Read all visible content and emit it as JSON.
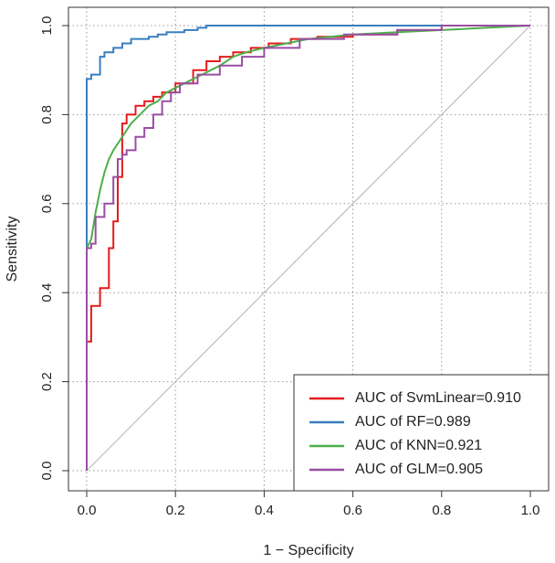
{
  "chart_data": {
    "type": "line",
    "title": "",
    "xlabel": "1 − Specificity",
    "ylabel": "Sensitivity",
    "xlim": [
      0,
      1
    ],
    "ylim": [
      0,
      1
    ],
    "xticks": [
      "0.0",
      "0.2",
      "0.4",
      "0.6",
      "0.8",
      "1.0"
    ],
    "yticks": [
      "0.0",
      "0.2",
      "0.4",
      "0.6",
      "0.8",
      "1.0"
    ],
    "grid": true,
    "legend_position": "bottom-right",
    "reference_line": {
      "x": [
        0,
        1
      ],
      "y": [
        0,
        1
      ],
      "color": "#bdbdbd"
    },
    "series": [
      {
        "name": "AUC of SvmLinear=0.910",
        "color": "#e41a1c",
        "step": true,
        "x": [
          0,
          0,
          0.01,
          0.01,
          0.03,
          0.03,
          0.05,
          0.05,
          0.06,
          0.06,
          0.07,
          0.07,
          0.08,
          0.08,
          0.09,
          0.09,
          0.11,
          0.11,
          0.13,
          0.13,
          0.15,
          0.15,
          0.17,
          0.17,
          0.2,
          0.2,
          0.24,
          0.24,
          0.27,
          0.27,
          0.3,
          0.3,
          0.33,
          0.33,
          0.37,
          0.37,
          0.41,
          0.41,
          0.46,
          0.46,
          0.52,
          0.52,
          0.6,
          0.6,
          0.7,
          0.7,
          0.8,
          0.8,
          1.0
        ],
        "y": [
          0,
          0.29,
          0.29,
          0.37,
          0.37,
          0.41,
          0.41,
          0.5,
          0.5,
          0.56,
          0.56,
          0.66,
          0.66,
          0.78,
          0.78,
          0.8,
          0.8,
          0.82,
          0.82,
          0.83,
          0.83,
          0.84,
          0.84,
          0.85,
          0.85,
          0.87,
          0.87,
          0.9,
          0.9,
          0.92,
          0.92,
          0.93,
          0.93,
          0.94,
          0.94,
          0.95,
          0.95,
          0.96,
          0.96,
          0.97,
          0.97,
          0.975,
          0.975,
          0.98,
          0.98,
          0.99,
          0.99,
          1.0,
          1.0
        ]
      },
      {
        "name": "AUC of RF=0.989",
        "color": "#3a7ebf",
        "step": true,
        "x": [
          0,
          0,
          0.01,
          0.01,
          0.03,
          0.03,
          0.04,
          0.04,
          0.06,
          0.06,
          0.08,
          0.08,
          0.1,
          0.1,
          0.14,
          0.14,
          0.16,
          0.16,
          0.18,
          0.18,
          0.22,
          0.22,
          0.25,
          0.25,
          0.27,
          0.27,
          1.0
        ],
        "y": [
          0,
          0.88,
          0.88,
          0.89,
          0.89,
          0.93,
          0.93,
          0.94,
          0.94,
          0.95,
          0.95,
          0.96,
          0.96,
          0.97,
          0.97,
          0.975,
          0.975,
          0.98,
          0.98,
          0.985,
          0.985,
          0.99,
          0.99,
          0.995,
          0.995,
          1.0,
          1.0
        ]
      },
      {
        "name": "AUC of KNN=0.921",
        "color": "#4daf4a",
        "step": false,
        "x": [
          0,
          0.01,
          0.02,
          0.03,
          0.04,
          0.05,
          0.06,
          0.08,
          0.1,
          0.12,
          0.14,
          0.16,
          0.18,
          0.2,
          0.22,
          0.24,
          0.26,
          0.28,
          0.3,
          0.33,
          0.36,
          0.4,
          0.45,
          0.5,
          0.55,
          0.6,
          0.7,
          0.8,
          0.9,
          1.0
        ],
        "y": [
          0.5,
          0.52,
          0.58,
          0.63,
          0.67,
          0.7,
          0.72,
          0.75,
          0.78,
          0.8,
          0.82,
          0.83,
          0.85,
          0.86,
          0.87,
          0.88,
          0.89,
          0.9,
          0.91,
          0.93,
          0.94,
          0.95,
          0.96,
          0.97,
          0.975,
          0.98,
          0.985,
          0.99,
          0.995,
          1.0
        ]
      },
      {
        "name": "AUC of GLM=0.905",
        "color": "#984ea3",
        "step": true,
        "x": [
          0,
          0,
          0.01,
          0.01,
          0.02,
          0.02,
          0.04,
          0.04,
          0.06,
          0.06,
          0.07,
          0.07,
          0.08,
          0.08,
          0.09,
          0.09,
          0.11,
          0.11,
          0.13,
          0.13,
          0.15,
          0.15,
          0.17,
          0.17,
          0.19,
          0.19,
          0.21,
          0.21,
          0.25,
          0.25,
          0.3,
          0.3,
          0.35,
          0.35,
          0.4,
          0.4,
          0.48,
          0.48,
          0.58,
          0.58,
          0.7,
          0.7,
          0.8,
          0.8,
          1.0
        ],
        "y": [
          0,
          0.5,
          0.5,
          0.51,
          0.51,
          0.57,
          0.57,
          0.6,
          0.6,
          0.66,
          0.66,
          0.7,
          0.7,
          0.71,
          0.71,
          0.72,
          0.72,
          0.75,
          0.75,
          0.77,
          0.77,
          0.8,
          0.8,
          0.83,
          0.83,
          0.85,
          0.85,
          0.87,
          0.87,
          0.89,
          0.89,
          0.91,
          0.91,
          0.93,
          0.93,
          0.95,
          0.95,
          0.97,
          0.97,
          0.98,
          0.98,
          0.99,
          0.99,
          1.0,
          1.0
        ]
      }
    ]
  }
}
